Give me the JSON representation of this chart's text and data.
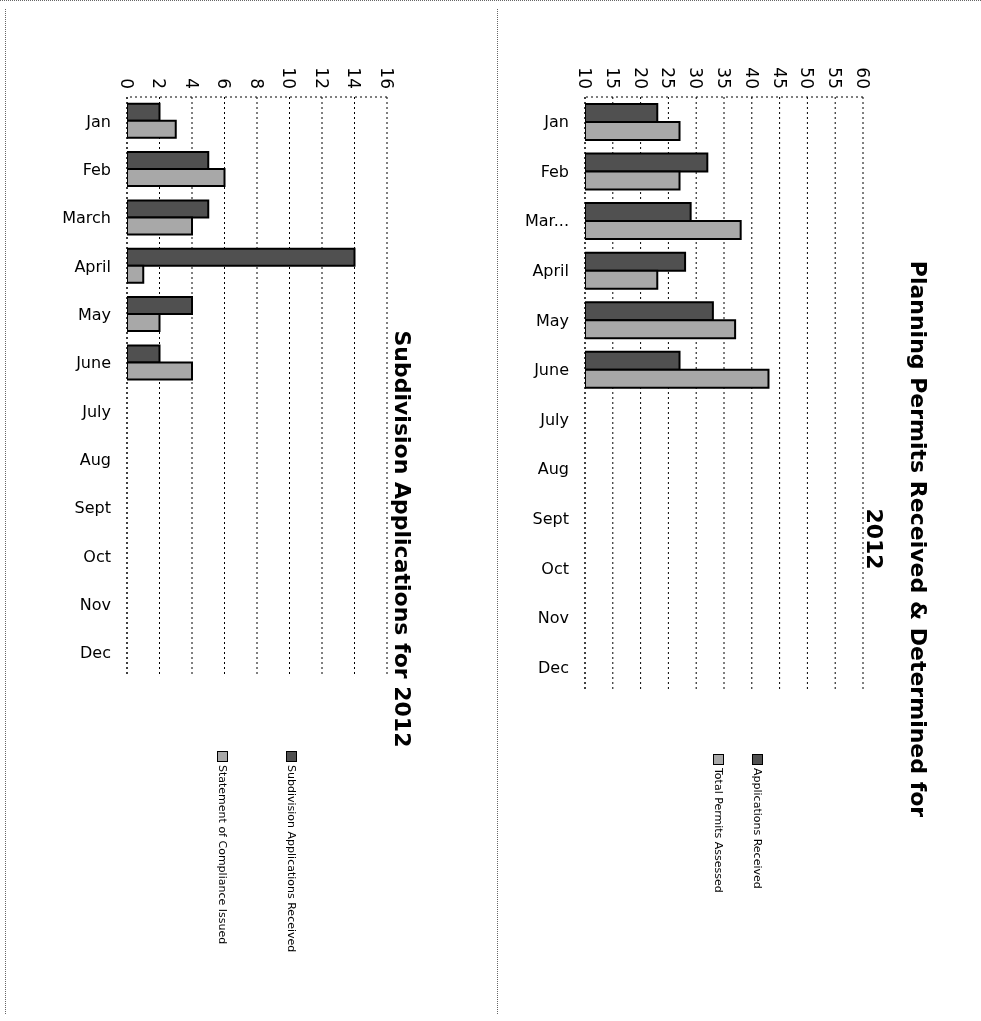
{
  "chart_data": [
    {
      "type": "bar",
      "orientation": "horizontal",
      "title": "Subdivision Applications for 2012",
      "categories": [
        "Jan",
        "Feb",
        "March",
        "April",
        "May",
        "June",
        "July",
        "Aug",
        "Sept",
        "Oct",
        "Nov",
        "Dec"
      ],
      "series": [
        {
          "name": "Subdivision Applications Received",
          "color": "#505050",
          "values": [
            2,
            5,
            5,
            14,
            4,
            2,
            null,
            null,
            null,
            null,
            null,
            null
          ]
        },
        {
          "name": "Statement of Compliance Issued",
          "color": "#a8a8a8",
          "values": [
            3,
            6,
            4,
            1,
            2,
            4,
            null,
            null,
            null,
            null,
            null,
            null
          ]
        }
      ],
      "xlim": [
        0,
        16
      ],
      "xticks": [
        0,
        2,
        4,
        6,
        8,
        10,
        12,
        14,
        16
      ],
      "grid": "x",
      "legend": "bottom"
    },
    {
      "type": "bar",
      "orientation": "horizontal",
      "title": "Planning Permits Received & Determined for 2012",
      "categories": [
        "Jan",
        "Feb",
        "Mar...",
        "April",
        "May",
        "June",
        "July",
        "Aug",
        "Sept",
        "Oct",
        "Nov",
        "Dec"
      ],
      "series": [
        {
          "name": "Applications Received",
          "color": "#505050",
          "values": [
            23,
            32,
            29,
            28,
            33,
            27,
            null,
            null,
            null,
            null,
            null,
            null
          ]
        },
        {
          "name": "Total Permits Assessed",
          "color": "#a8a8a8",
          "values": [
            27,
            27,
            38,
            23,
            37,
            43,
            null,
            null,
            null,
            null,
            null,
            null
          ]
        }
      ],
      "xlim": [
        10,
        60
      ],
      "xticks": [
        10,
        15,
        20,
        25,
        30,
        35,
        40,
        45,
        50,
        55,
        60
      ],
      "grid": "x",
      "legend": "bottom"
    }
  ]
}
